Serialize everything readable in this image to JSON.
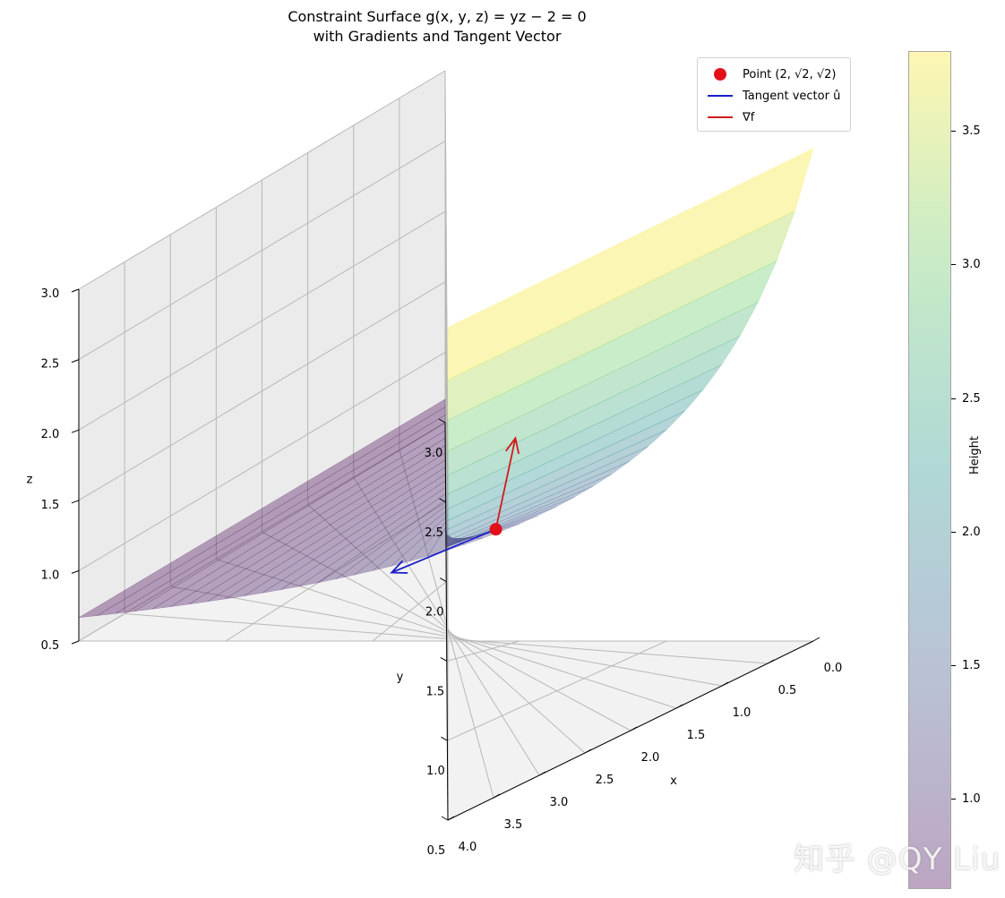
{
  "chart_data": {
    "type": "surface3d",
    "title_line1": "Constraint Surface g(x, y, z) = yz − 2 = 0",
    "title_line2": "with Gradients and Tangent Vector",
    "xlabel": "x",
    "ylabel": "y",
    "zlabel": "z",
    "xlim": [
      0,
      4
    ],
    "ylim": [
      0.5,
      3
    ],
    "zlim": [
      0.5,
      3
    ],
    "x_ticks": [
      "0.0",
      "0.5",
      "1.0",
      "1.5",
      "2.0",
      "2.5",
      "3.0",
      "3.5",
      "4.0"
    ],
    "y_ticks": [
      "0.5",
      "1.0",
      "1.5",
      "2.0",
      "2.5",
      "3.0"
    ],
    "z_ticks": [
      "0.5",
      "1.0",
      "1.5",
      "2.0",
      "2.5",
      "3.0"
    ],
    "surface": {
      "equation": "z = 2 / y",
      "x_range": [
        0,
        4
      ],
      "y_range": [
        0.5,
        3
      ],
      "z_range": [
        0.667,
        4
      ]
    },
    "point": {
      "x": 2,
      "y": 1.414,
      "z": 1.414
    },
    "tangent_vector": {
      "dx": 0,
      "dy": 0.707,
      "dz": -0.707
    },
    "gradient_vector": {
      "dx": -0.8,
      "dy": 0,
      "dz": 0.6
    },
    "colorbar": {
      "label": "Height",
      "range": [
        0.667,
        3.8
      ],
      "ticks": [
        "1.0",
        "1.5",
        "2.0",
        "2.5",
        "3.0",
        "3.5"
      ],
      "colormap": "viridis",
      "alpha": 0.35
    },
    "legend": [
      {
        "label": "Point (2, √2, √2)",
        "kind": "marker",
        "color": "#e3101a"
      },
      {
        "label": "Tangent vector û",
        "kind": "line",
        "color": "#1a1fc9"
      },
      {
        "label": "∇f",
        "kind": "line",
        "color": "#d01c1c"
      }
    ]
  },
  "watermark": "知乎 @QY Liu"
}
